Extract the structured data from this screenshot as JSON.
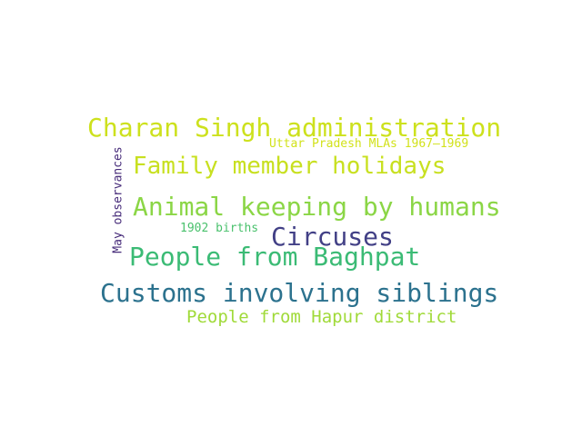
{
  "words": [
    {
      "text": "Charan Singh administration",
      "color": "#cde11d"
    },
    {
      "text": "Uttar Pradesh MLAs 1967–1969",
      "color": "#d2e21b"
    },
    {
      "text": "Family member holidays",
      "color": "#c8e020"
    },
    {
      "text": "Animal keeping by humans",
      "color": "#8bd646"
    },
    {
      "text": "1902 births",
      "color": "#4ac16d"
    },
    {
      "text": "Circuses",
      "color": "#424086"
    },
    {
      "text": "People from Baghpat",
      "color": "#3bbb75"
    },
    {
      "text": "Customs involving siblings",
      "color": "#2c728e"
    },
    {
      "text": "People from Hapur district",
      "color": "#a0da39"
    },
    {
      "text": "May observances",
      "color": "#472c7a"
    }
  ]
}
